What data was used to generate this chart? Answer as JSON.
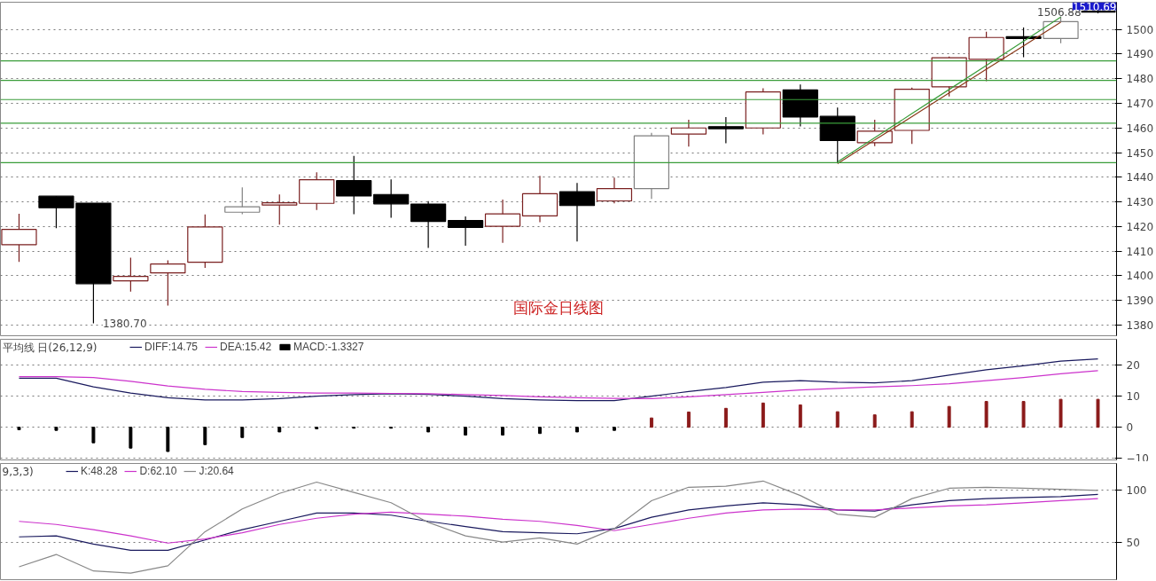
{
  "chart_data": [
    {
      "type": "candlestick",
      "title": "国际金日线图",
      "categories": [
        null,
        null,
        null,
        null,
        null,
        null,
        null,
        null,
        null,
        null,
        null,
        null,
        null,
        null,
        null,
        null,
        null,
        null,
        null,
        null,
        null,
        null,
        null,
        null,
        null,
        null,
        null,
        null,
        null,
        null
      ],
      "ohlc": [
        [
          1412.6,
          1425.2,
          1405.7,
          1418.8
        ],
        [
          1432.3,
          1432.3,
          1419.3,
          1427.6
        ],
        [
          1429.5,
          1429.5,
          1380.7,
          1396.8
        ],
        [
          1398.0,
          1407.4,
          1393.6,
          1399.8
        ],
        [
          1401.2,
          1406.3,
          1387.9,
          1404.8
        ],
        [
          1405.5,
          1424.9,
          1403.2,
          1419.8
        ],
        [
          1425.8,
          1435.9,
          1425.0,
          1428.0
        ],
        [
          1428.7,
          1433.0,
          1420.8,
          1429.6
        ],
        [
          1429.4,
          1442.0,
          1426.7,
          1439.0
        ],
        [
          1438.6,
          1448.7,
          1425.0,
          1432.4
        ],
        [
          1433.0,
          1439.1,
          1423.6,
          1429.2
        ],
        [
          1429.1,
          1430.3,
          1411.3,
          1422.1
        ],
        [
          1422.4,
          1424.1,
          1412.2,
          1419.6
        ],
        [
          1420.1,
          1430.9,
          1413.4,
          1425.1
        ],
        [
          1424.3,
          1440.6,
          1421.8,
          1433.3
        ],
        [
          1434.1,
          1437.7,
          1413.9,
          1428.5
        ],
        [
          1430.4,
          1439.8,
          1429.4,
          1435.4
        ],
        [
          1435.4,
          1458.0,
          1431.2,
          1456.8
        ],
        [
          1457.5,
          1463.3,
          1452.4,
          1460.0
        ],
        [
          1460.5,
          1464.4,
          1453.8,
          1459.7
        ],
        [
          1460.0,
          1476.1,
          1457.4,
          1474.6
        ],
        [
          1475.4,
          1477.6,
          1460.6,
          1464.4
        ],
        [
          1464.7,
          1468.3,
          1445.8,
          1454.9
        ],
        [
          1454.0,
          1463.3,
          1452.6,
          1458.7
        ],
        [
          1459.0,
          1476.4,
          1453.5,
          1475.7
        ],
        [
          1476.7,
          1489.0,
          1472.8,
          1488.5
        ],
        [
          1487.8,
          1499.0,
          1479.0,
          1496.7
        ],
        [
          1497.0,
          1500.7,
          1488.7,
          1496.3
        ],
        [
          1496.3,
          1506.88,
          1494.4,
          1503.1
        ],
        [
          1507.0,
          1508.5,
          1506.5,
          1507.4
        ]
      ],
      "colors": [
        "#7a1f1f",
        "#000000",
        "#000000",
        "#7a1f1f",
        "#7a1f1f",
        "#7a1f1f",
        "#808080",
        "#7a1f1f",
        "#7a1f1f",
        "#000000",
        "#000000",
        "#000000",
        "#000000",
        "#7a1f1f",
        "#7a1f1f",
        "#000000",
        "#7a1f1f",
        "#808080",
        "#7a1f1f",
        "#000000",
        "#7a1f1f",
        "#000000",
        "#000000",
        "#7a1f1f",
        "#7a1f1f",
        "#7a1f1f",
        "#7a1f1f",
        "#000000",
        "#808080",
        "#000000"
      ],
      "series": [
        {
          "type": "line",
          "color": "#8b3a1a",
          "values": [
            null,
            null,
            null,
            null,
            null,
            null,
            null,
            null,
            null,
            null,
            null,
            null,
            null,
            null,
            null,
            null,
            null,
            null,
            null,
            null,
            null,
            null,
            1445.5,
            1455.1,
            1464.6,
            1474.2,
            1483.8,
            1493.3,
            1502.9,
            null
          ]
        },
        {
          "type": "line",
          "color": "#3a9d3a",
          "values": [
            null,
            null,
            null,
            null,
            null,
            null,
            null,
            null,
            null,
            null,
            null,
            null,
            null,
            null,
            null,
            null,
            null,
            null,
            null,
            null,
            null,
            null,
            1446.2,
            1456.0,
            1465.8,
            1475.6,
            1485.4,
            1495.2,
            1505.0,
            null
          ]
        }
      ],
      "ylim": [
        1375.7,
        1511
      ],
      "yticks": [
        1380,
        1390,
        1400,
        1410,
        1420,
        1430,
        1440,
        1450,
        1460,
        1470,
        1480,
        1490,
        1500
      ],
      "ref_lines": [
        {
          "axis": "y",
          "value": 1487.2,
          "color": "#3a9d3a"
        },
        {
          "axis": "y",
          "value": 1479.3,
          "color": "#3a9d3a"
        },
        {
          "axis": "y",
          "value": 1471.5,
          "color": "#3a9d3a"
        },
        {
          "axis": "y",
          "value": 1461.9,
          "color": "#3a9d3a"
        },
        {
          "axis": "y",
          "value": 1445.9,
          "color": "#3a9d3a"
        }
      ],
      "annotations": [
        "1380.70",
        "1506.88",
        "1510.69"
      ],
      "grid": "y",
      "tick_labels": "y"
    },
    {
      "type": "line",
      "legend_title": "平均线 日(26,12,9)",
      "categories": [
        null,
        null,
        null,
        null,
        null,
        null,
        null,
        null,
        null,
        null,
        null,
        null,
        null,
        null,
        null,
        null,
        null,
        null,
        null,
        null,
        null,
        null,
        null,
        null,
        null,
        null,
        null,
        null,
        null,
        null
      ],
      "series": [
        {
          "name": "DIFF:14.75",
          "color": "#1a1a5e",
          "values": [
            15.8,
            15.8,
            13,
            11,
            9.5,
            8.8,
            8.8,
            9.2,
            10,
            10.5,
            10.8,
            10.6,
            10,
            9.2,
            8.8,
            8.6,
            8.6,
            10,
            11.5,
            12.8,
            14.5,
            15,
            14.5,
            14.3,
            15,
            16.8,
            18.5,
            19.8,
            21.3,
            22
          ]
        },
        {
          "name": "DEA:15.42",
          "color": "#cc33cc",
          "values": [
            16.3,
            16.3,
            16,
            14.8,
            13.3,
            12.2,
            11.5,
            11.2,
            11,
            11,
            10.9,
            10.8,
            10.5,
            10.2,
            9.8,
            9.5,
            9.3,
            9.2,
            9.8,
            10.5,
            11.2,
            12.0,
            12.5,
            13,
            13.4,
            14,
            15,
            16,
            17.2,
            18.2
          ]
        },
        {
          "name": "MACD:-1.3327",
          "type": "bar",
          "values": [
            -0.8,
            -1,
            -5,
            -6.7,
            -7.8,
            -5.6,
            -3.3,
            -1.5,
            -0.5,
            -0.3,
            -0.3,
            -1.5,
            -2.5,
            -2.5,
            -2,
            -1.5,
            -1,
            3,
            4.9,
            6.1,
            7.8,
            7.2,
            5,
            4,
            5,
            6.7,
            8.3,
            8.3,
            9,
            9
          ],
          "colors": [
            "#000000",
            "#000000",
            "#000000",
            "#000000",
            "#000000",
            "#000000",
            "#000000",
            "#000000",
            "#000000",
            "#000000",
            "#000000",
            "#000000",
            "#000000",
            "#000000",
            "#000000",
            "#000000",
            "#000000",
            "#8b1a1a",
            "#8b1a1a",
            "#8b1a1a",
            "#8b1a1a",
            "#8b1a1a",
            "#8b1a1a",
            "#8b1a1a",
            "#8b1a1a",
            "#8b1a1a",
            "#8b1a1a",
            "#8b1a1a",
            "#8b1a1a",
            "#8b1a1a"
          ]
        }
      ],
      "ylim": [
        -10.5,
        28.3
      ],
      "yticks": [
        -10,
        0,
        10,
        20
      ],
      "grid": "y",
      "legend": "top left",
      "tick_labels": "y"
    },
    {
      "type": "line",
      "legend_title": "9,3,3)",
      "categories": [
        null,
        null,
        null,
        null,
        null,
        null,
        null,
        null,
        null,
        null,
        null,
        null,
        null,
        null,
        null,
        null,
        null,
        null,
        null,
        null,
        null,
        null,
        null,
        null,
        null,
        null,
        null,
        null,
        null,
        null
      ],
      "series": [
        {
          "name": "K:48.28",
          "color": "#1a1a5e",
          "values": [
            55,
            56,
            48,
            42,
            42,
            52,
            62,
            70,
            78,
            78,
            76,
            70,
            65,
            60,
            59,
            58,
            63,
            74,
            81,
            85,
            88,
            86,
            81,
            80,
            86,
            90,
            92,
            93,
            94,
            96
          ]
        },
        {
          "name": "D:62.10",
          "color": "#cc33cc",
          "values": [
            70,
            67,
            62,
            56,
            49,
            53,
            59,
            67,
            73,
            77,
            79,
            77,
            75,
            72,
            70,
            66,
            61,
            67,
            73,
            78,
            81,
            82,
            81,
            81,
            83,
            85,
            86,
            88,
            90,
            92
          ]
        },
        {
          "name": "J:20.64",
          "color": "#888888",
          "values": [
            26,
            38,
            22,
            20,
            27,
            60,
            82,
            97,
            108,
            98,
            88,
            69,
            56,
            50,
            54,
            48,
            63,
            90,
            103,
            104,
            109,
            95,
            77,
            74,
            92,
            102,
            103,
            102,
            101,
            100
          ]
        }
      ],
      "ylim": [
        13.6,
        126
      ],
      "yticks": [
        50,
        100
      ],
      "grid": "y",
      "legend": "top left",
      "tick_labels": "y"
    }
  ]
}
